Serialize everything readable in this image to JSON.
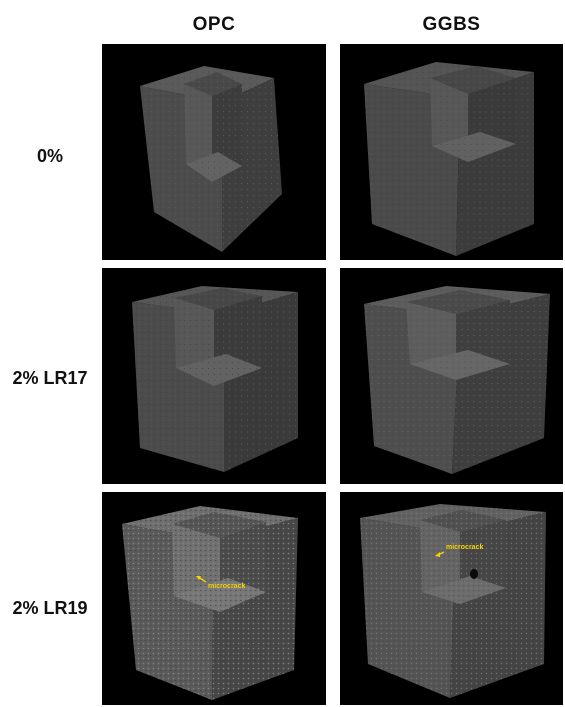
{
  "columns": [
    "OPC",
    "GGBS"
  ],
  "rows": [
    "0%",
    "2% LR17",
    "2% LR19"
  ],
  "annotations": {
    "opc_lr19": "microcrack",
    "ggbs_lr19": "microcrack"
  },
  "colors": {
    "background": "#000000",
    "annotation": "#f5d300"
  }
}
